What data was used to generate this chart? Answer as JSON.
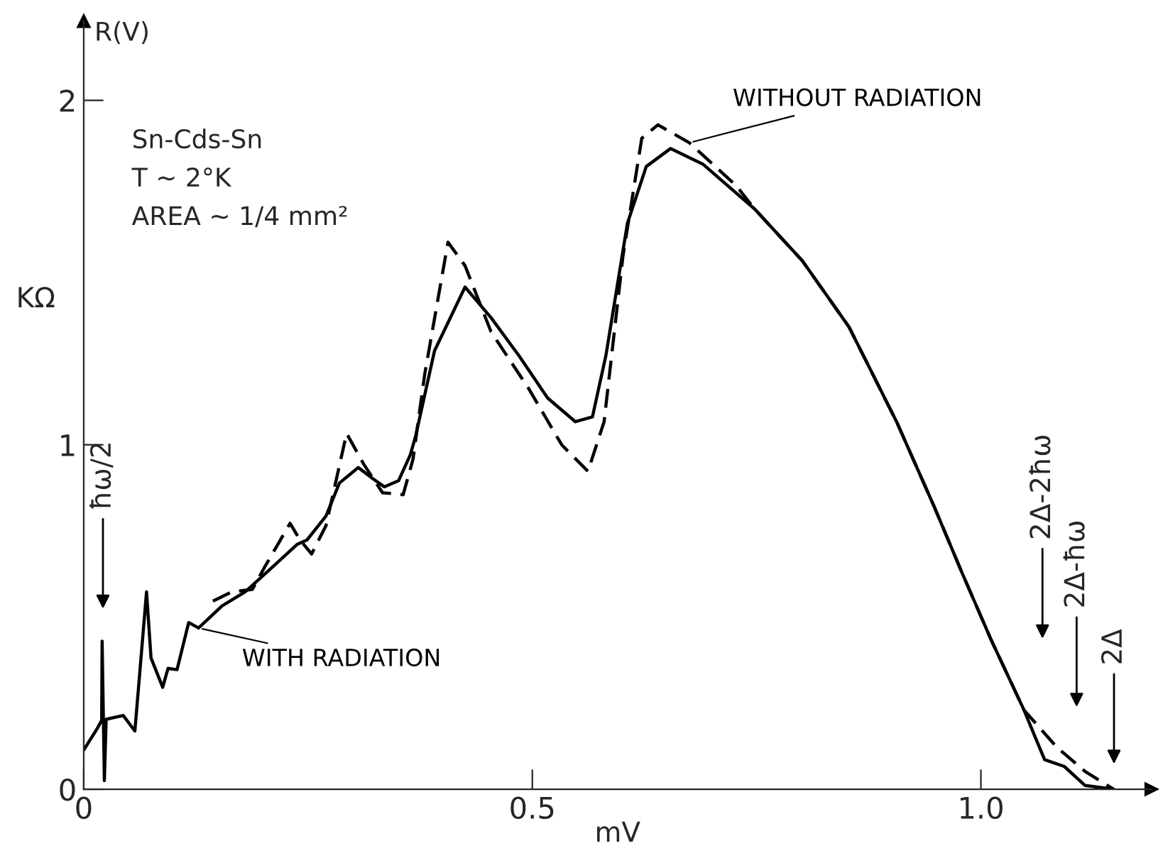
{
  "chart_data": {
    "type": "line",
    "xlabel": "mV",
    "ylabel": "KΩ",
    "xlim": [
      0,
      1.19
    ],
    "ylim": [
      0,
      2.23
    ],
    "xticks": [
      0,
      0.5,
      {
        "value": 1.0,
        "label": "1.0"
      }
    ],
    "yticks": [
      0,
      1,
      2
    ],
    "grid": false,
    "marker": "none",
    "series": [
      {
        "name": "WITH RADIATION",
        "color": "#000000",
        "line_style": "solid",
        "x": [
          0,
          0.015,
          0.02,
          0.0205,
          0.023,
          0.025,
          0.044,
          0.057,
          0.07,
          0.075,
          0.088,
          0.094,
          0.104,
          0.117,
          0.128,
          0.154,
          0.18,
          0.212,
          0.238,
          0.249,
          0.27,
          0.285,
          0.306,
          0.322,
          0.335,
          0.351,
          0.364,
          0.37,
          0.391,
          0.425,
          0.454,
          0.485,
          0.517,
          0.548,
          0.567,
          0.582,
          0.606,
          0.627,
          0.654,
          0.69,
          0.748,
          0.801,
          0.853,
          0.906,
          0.948,
          0.979,
          1.011,
          1.048,
          1.061,
          1.071,
          1.093,
          1.116,
          1.148
        ],
        "values": [
          0.114,
          0.176,
          0.2,
          0.43,
          0.025,
          0.203,
          0.214,
          0.169,
          0.573,
          0.381,
          0.296,
          0.351,
          0.347,
          0.484,
          0.468,
          0.532,
          0.573,
          0.649,
          0.711,
          0.724,
          0.793,
          0.889,
          0.934,
          0.902,
          0.878,
          0.896,
          0.971,
          1.026,
          1.273,
          1.458,
          1.369,
          1.259,
          1.136,
          1.067,
          1.081,
          1.259,
          1.643,
          1.808,
          1.86,
          1.815,
          1.684,
          1.534,
          1.342,
          1.067,
          0.82,
          0.628,
          0.436,
          0.23,
          0.148,
          0.086,
          0.066,
          0.011,
          0
        ]
      },
      {
        "name": "WITHOUT RADIATION",
        "color": "#000000",
        "line_style": "dashed",
        "x": [
          0.144,
          0.165,
          0.188,
          0.201,
          0.23,
          0.241,
          0.254,
          0.27,
          0.293,
          0.312,
          0.333,
          0.356,
          0.367,
          0.38,
          0.406,
          0.425,
          0.454,
          0.496,
          0.533,
          0.562,
          0.58,
          0.601,
          0.622,
          0.64,
          0.675,
          0.727,
          0.748,
          0.801,
          0.853,
          0.906,
          0.948,
          0.979,
          1.011,
          1.048,
          1.085,
          1.116,
          1.148
        ],
        "values": [
          0.546,
          0.573,
          0.58,
          0.642,
          0.772,
          0.724,
          0.683,
          0.765,
          1.033,
          0.944,
          0.861,
          0.855,
          0.958,
          1.204,
          1.588,
          1.52,
          1.328,
          1.163,
          0.999,
          0.923,
          1.067,
          1.547,
          1.89,
          1.929,
          1.877,
          1.753,
          1.684,
          1.534,
          1.342,
          1.067,
          0.82,
          0.628,
          0.436,
          0.23,
          0.121,
          0.052,
          0
        ]
      }
    ],
    "annotations": [
      "R(V)",
      "Sn-Cds-Sn",
      "T ~ 2°K",
      "AREA ~ 1/4 mm²",
      "ħω/2",
      "2Δ-2ħω",
      "2Δ-ħω",
      "2Δ"
    ]
  }
}
